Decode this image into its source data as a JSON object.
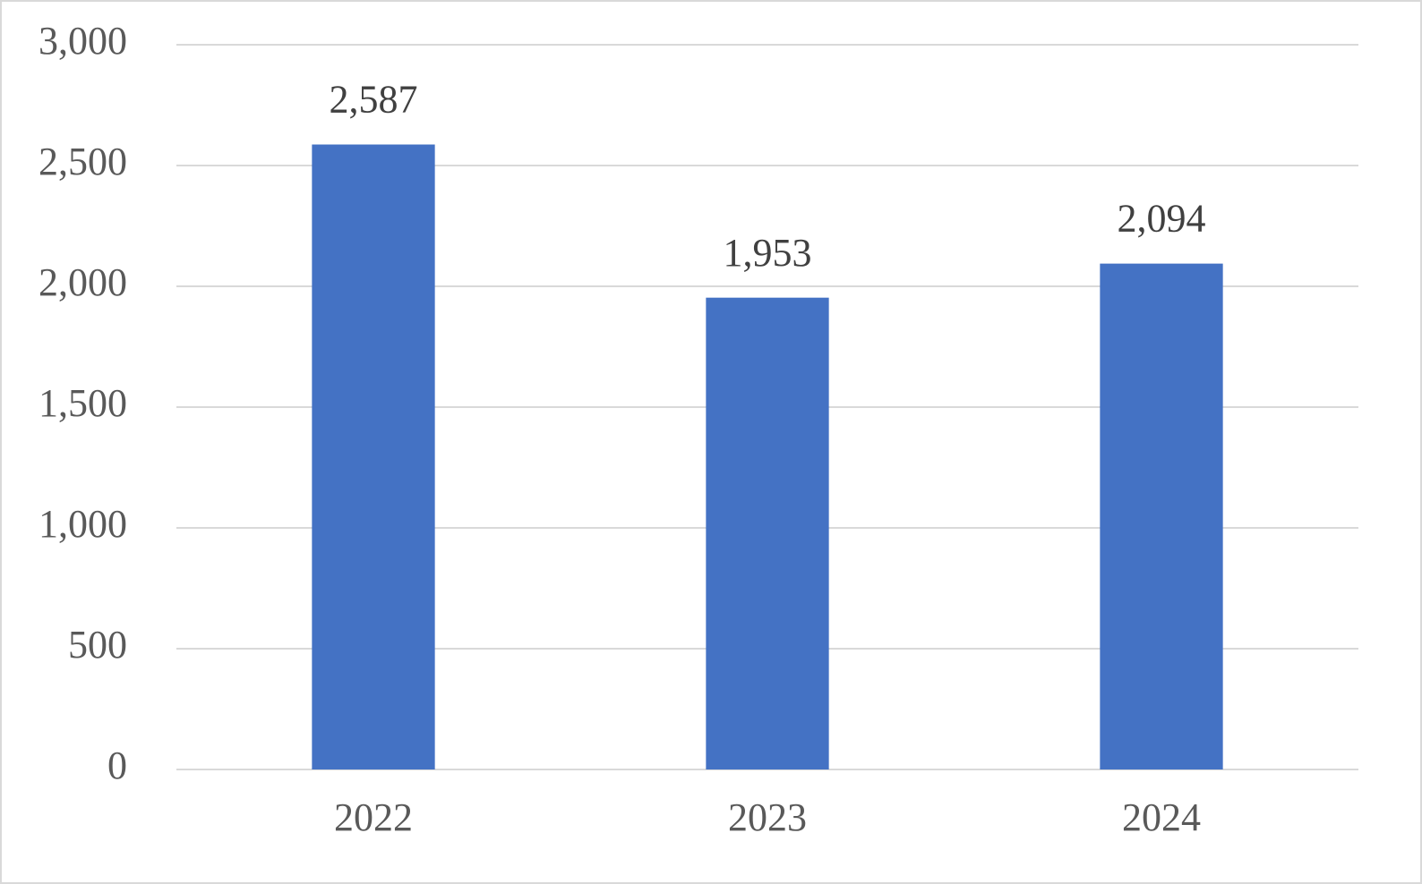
{
  "chart_data": {
    "type": "bar",
    "categories": [
      "2022",
      "2023",
      "2024"
    ],
    "values": [
      2587,
      1953,
      2094
    ],
    "value_labels": [
      "2,587",
      "1,953",
      "2,094"
    ],
    "color": "#4472c4",
    "ylim": [
      0,
      3000
    ],
    "yticks": [
      0,
      500,
      {
        "value": 1000,
        "label": "1,000"
      },
      {
        "value": 1500,
        "label": "1,500"
      },
      {
        "value": 2000,
        "label": "2,000"
      },
      {
        "value": 2500,
        "label": "2,500"
      },
      {
        "value": 3000,
        "label": "3,000"
      }
    ],
    "grid": true
  }
}
